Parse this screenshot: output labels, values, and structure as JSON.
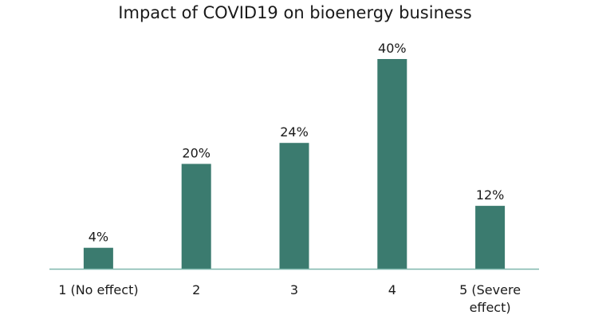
{
  "chart_data": {
    "type": "bar",
    "title": "Impact of COVID19 on bioenergy business",
    "categories": [
      [
        "1 (No effect)"
      ],
      [
        "2"
      ],
      [
        "3"
      ],
      [
        "4"
      ],
      [
        "5 (Severe",
        "effect)"
      ]
    ],
    "values": [
      4,
      20,
      24,
      40,
      12
    ],
    "value_labels": [
      "4%",
      "20%",
      "24%",
      "40%",
      "12%"
    ],
    "xlabel": "",
    "ylabel": "",
    "ylim": [
      0,
      40
    ],
    "grid": false,
    "legend": "none",
    "colors": {
      "bar": "#3b7b6f",
      "axis": "#7fb7ad"
    }
  }
}
